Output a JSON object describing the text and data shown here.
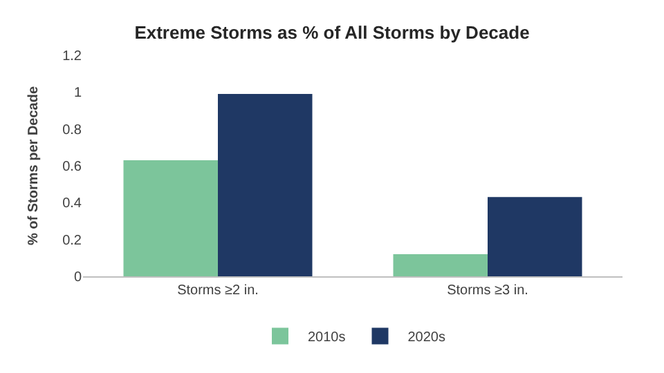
{
  "chart_data": {
    "type": "bar",
    "title": "Extreme Storms as % of All Storms by Decade",
    "ylabel": "% of Storms per Decade",
    "categories": [
      "Storms ≥2 in.",
      "Storms ≥3 in."
    ],
    "series": [
      {
        "name": "2010s",
        "color": "#7cc59b",
        "values": [
          0.63,
          0.12
        ]
      },
      {
        "name": "2020s",
        "color": "#1f3864",
        "values": [
          0.99,
          0.43
        ]
      }
    ],
    "ylim": [
      0,
      1.2
    ],
    "yticks": [
      0,
      0.2,
      0.4,
      0.6,
      0.8,
      1,
      1.2
    ],
    "legend": "bottom"
  }
}
